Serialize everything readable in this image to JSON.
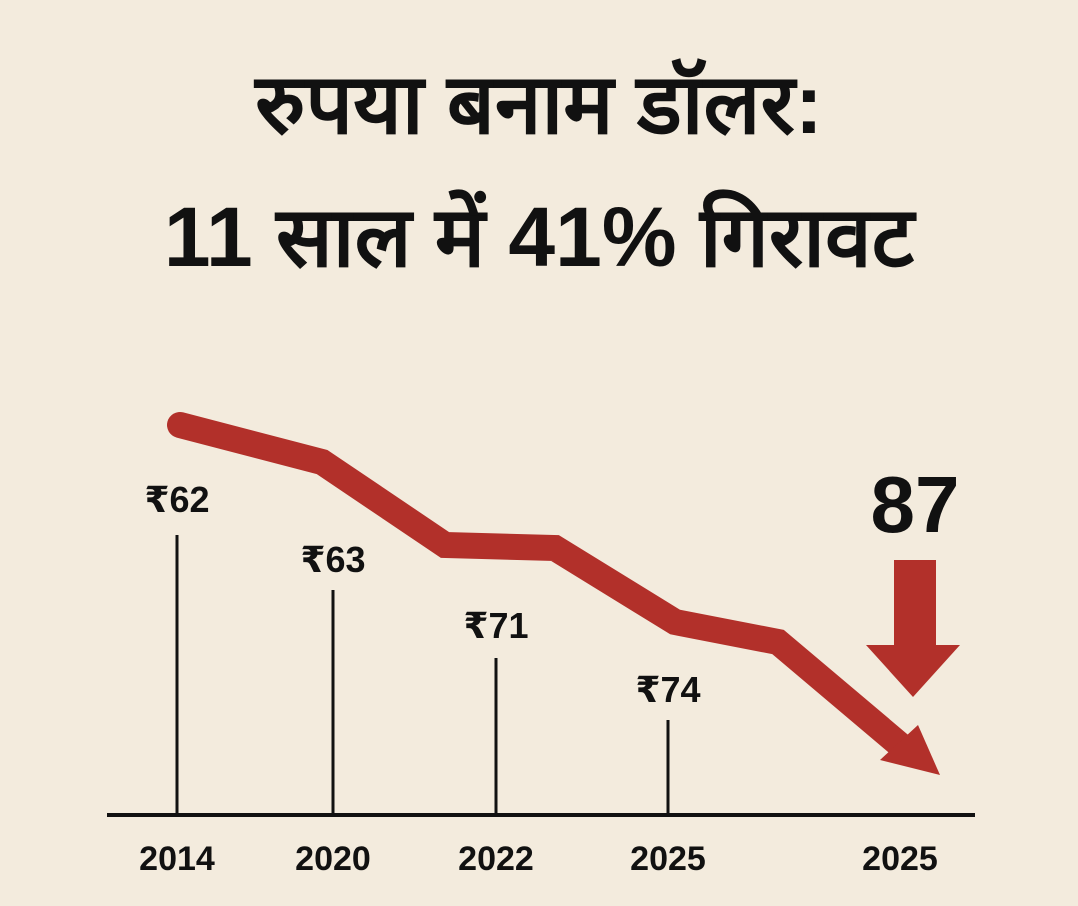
{
  "title_line1": "रुपया बनाम डॉलर:",
  "title_line2": "11 साल में 41% गिरावट",
  "chart_data": {
    "type": "line",
    "categories": [
      "2014",
      "2020",
      "2022",
      "2025",
      "2025"
    ],
    "values": [
      62,
      63,
      71,
      74,
      87
    ],
    "value_labels": [
      "₹62",
      "₹63",
      "₹71",
      "₹74",
      "87"
    ],
    "currency_symbol": "₹",
    "highlight_value": "87",
    "trend": "downward",
    "colors": {
      "trend_line": "#b2302a",
      "text": "#111111",
      "background": "#f3ebdd"
    }
  }
}
